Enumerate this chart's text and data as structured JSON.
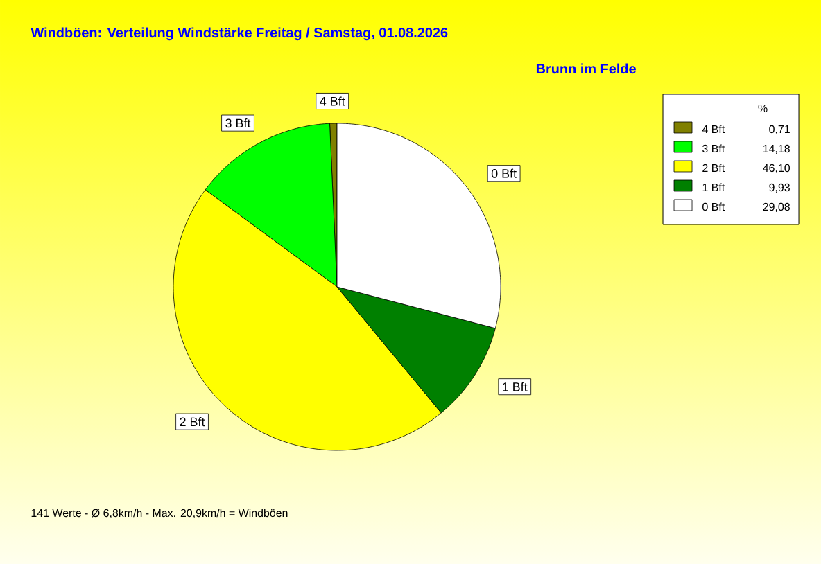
{
  "chart_data": {
    "type": "pie",
    "title": "Windböen: Verteilung Windstärke Freitag / Samstag, 01.08.2026",
    "subtitle": "Brunn im Felde",
    "categories": [
      "4 Bft",
      "3 Bft",
      "2 Bft",
      "1 Bft",
      "0 Bft"
    ],
    "values": [
      0.71,
      14.18,
      46.1,
      9.93,
      29.08
    ],
    "value_labels": [
      "0,71",
      "14,18",
      "46,10",
      "9,93",
      "29,08"
    ],
    "colors": [
      "#808000",
      "#00ff00",
      "#ffff00",
      "#008000",
      "#ffffff"
    ],
    "legend": "top right",
    "legend_title": "%",
    "annotations": [
      "141 Werte   -   Ø 6,8km/h  -  Max. 20,9km/h = Windböen"
    ]
  }
}
